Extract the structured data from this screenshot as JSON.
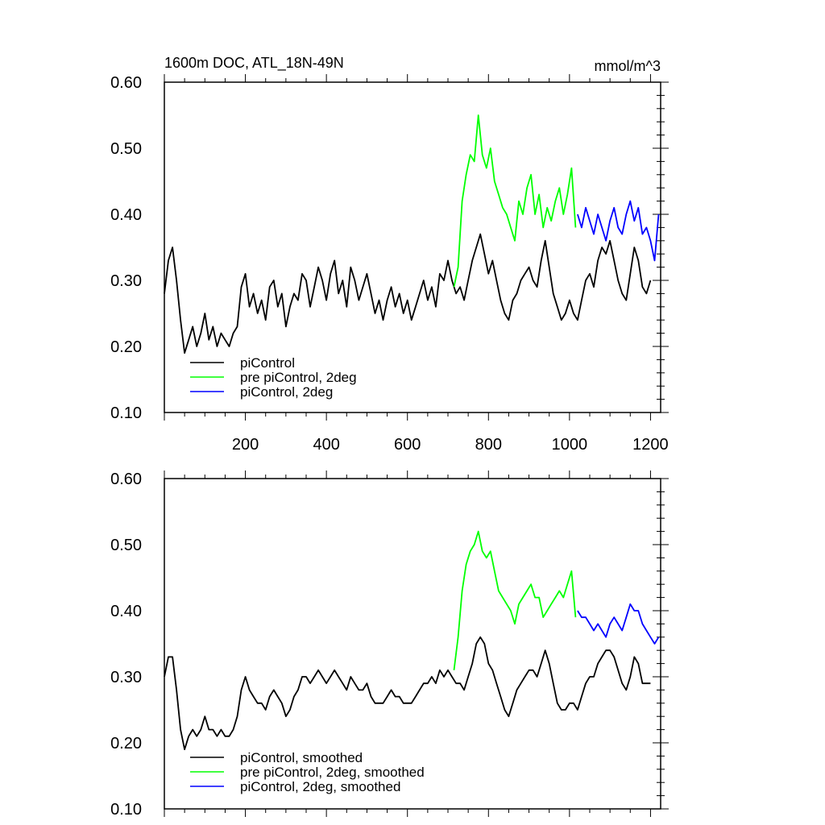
{
  "chart_data": [
    {
      "type": "line",
      "title": "1600m DOC, ATL_18N-49N",
      "units": "mmol/m^3",
      "xlabel": "",
      "ylabel": "",
      "xlim": [
        0,
        1225
      ],
      "ylim": [
        0.1,
        0.6
      ],
      "xticks": [
        200,
        400,
        600,
        800,
        1000,
        1200
      ],
      "yticks": [
        "0.10",
        "0.20",
        "0.30",
        "0.40",
        "0.50",
        "0.60"
      ],
      "grid": false,
      "legend_position": "bottom-left",
      "series": [
        {
          "name": "piControl",
          "color": "#000000",
          "x": [
            0,
            10,
            20,
            30,
            40,
            50,
            60,
            70,
            80,
            90,
            100,
            110,
            120,
            130,
            140,
            150,
            160,
            170,
            180,
            190,
            200,
            210,
            220,
            230,
            240,
            250,
            260,
            270,
            280,
            290,
            300,
            310,
            320,
            330,
            340,
            350,
            360,
            370,
            380,
            390,
            400,
            410,
            420,
            430,
            440,
            450,
            460,
            470,
            480,
            490,
            500,
            510,
            520,
            530,
            540,
            550,
            560,
            570,
            580,
            590,
            600,
            610,
            620,
            630,
            640,
            650,
            660,
            670,
            680,
            690,
            700,
            710,
            720,
            730,
            740,
            750,
            760,
            770,
            780,
            790,
            800,
            810,
            820,
            830,
            840,
            850,
            860,
            870,
            880,
            890,
            900,
            910,
            920,
            930,
            940,
            950,
            960,
            970,
            980,
            990,
            1000,
            1010,
            1020,
            1030,
            1040,
            1050,
            1060,
            1070,
            1080,
            1090,
            1100,
            1110,
            1120,
            1130,
            1140,
            1150,
            1160,
            1170,
            1180,
            1190,
            1200
          ],
          "values": [
            0.28,
            0.33,
            0.35,
            0.3,
            0.24,
            0.19,
            0.21,
            0.23,
            0.2,
            0.22,
            0.25,
            0.21,
            0.23,
            0.2,
            0.22,
            0.21,
            0.2,
            0.22,
            0.23,
            0.29,
            0.31,
            0.26,
            0.28,
            0.25,
            0.27,
            0.24,
            0.29,
            0.3,
            0.26,
            0.28,
            0.23,
            0.26,
            0.28,
            0.27,
            0.31,
            0.3,
            0.26,
            0.29,
            0.32,
            0.3,
            0.27,
            0.31,
            0.33,
            0.28,
            0.3,
            0.26,
            0.32,
            0.3,
            0.27,
            0.29,
            0.31,
            0.28,
            0.25,
            0.27,
            0.24,
            0.27,
            0.29,
            0.26,
            0.28,
            0.25,
            0.27,
            0.24,
            0.26,
            0.28,
            0.3,
            0.27,
            0.29,
            0.26,
            0.31,
            0.3,
            0.33,
            0.3,
            0.28,
            0.29,
            0.27,
            0.3,
            0.33,
            0.35,
            0.37,
            0.34,
            0.31,
            0.33,
            0.3,
            0.27,
            0.25,
            0.24,
            0.27,
            0.28,
            0.3,
            0.31,
            0.32,
            0.3,
            0.29,
            0.33,
            0.36,
            0.32,
            0.28,
            0.26,
            0.24,
            0.25,
            0.27,
            0.25,
            0.24,
            0.27,
            0.3,
            0.31,
            0.29,
            0.33,
            0.35,
            0.34,
            0.36,
            0.33,
            0.3,
            0.28,
            0.27,
            0.31,
            0.35,
            0.33,
            0.29,
            0.28,
            0.3
          ]
        },
        {
          "name": "pre piControl, 2deg",
          "color": "#00ff00",
          "x": [
            715,
            725,
            735,
            745,
            755,
            765,
            775,
            785,
            795,
            805,
            815,
            825,
            835,
            845,
            855,
            865,
            875,
            885,
            895,
            905,
            915,
            925,
            935,
            945,
            955,
            965,
            975,
            985,
            995,
            1005,
            1015
          ],
          "values": [
            0.29,
            0.32,
            0.42,
            0.46,
            0.49,
            0.48,
            0.55,
            0.49,
            0.47,
            0.5,
            0.45,
            0.43,
            0.41,
            0.4,
            0.38,
            0.36,
            0.42,
            0.4,
            0.44,
            0.46,
            0.4,
            0.43,
            0.38,
            0.41,
            0.39,
            0.42,
            0.44,
            0.4,
            0.43,
            0.47,
            0.38
          ]
        },
        {
          "name": "piControl, 2deg",
          "color": "#0000ff",
          "x": [
            1020,
            1030,
            1040,
            1050,
            1060,
            1070,
            1080,
            1090,
            1100,
            1110,
            1120,
            1130,
            1140,
            1150,
            1160,
            1170,
            1180,
            1190,
            1200,
            1210,
            1220
          ],
          "values": [
            0.4,
            0.38,
            0.41,
            0.39,
            0.37,
            0.4,
            0.38,
            0.36,
            0.39,
            0.41,
            0.38,
            0.37,
            0.4,
            0.42,
            0.39,
            0.41,
            0.37,
            0.38,
            0.36,
            0.33,
            0.4
          ]
        }
      ]
    },
    {
      "type": "line",
      "title": "",
      "units": "",
      "xlabel": "",
      "ylabel": "",
      "xlim": [
        0,
        1225
      ],
      "ylim": [
        0.1,
        0.6
      ],
      "xticks": [
        200,
        400,
        600,
        800,
        1000,
        1200
      ],
      "yticks": [
        "0.10",
        "0.20",
        "0.30",
        "0.40",
        "0.50",
        "0.60"
      ],
      "grid": false,
      "legend_position": "bottom-left",
      "series": [
        {
          "name": "piControl, smoothed",
          "color": "#000000",
          "x": [
            0,
            10,
            20,
            30,
            40,
            50,
            60,
            70,
            80,
            90,
            100,
            110,
            120,
            130,
            140,
            150,
            160,
            170,
            180,
            190,
            200,
            210,
            220,
            230,
            240,
            250,
            260,
            270,
            280,
            290,
            300,
            310,
            320,
            330,
            340,
            350,
            360,
            370,
            380,
            390,
            400,
            410,
            420,
            430,
            440,
            450,
            460,
            470,
            480,
            490,
            500,
            510,
            520,
            530,
            540,
            550,
            560,
            570,
            580,
            590,
            600,
            610,
            620,
            630,
            640,
            650,
            660,
            670,
            680,
            690,
            700,
            710,
            720,
            730,
            740,
            750,
            760,
            770,
            780,
            790,
            800,
            810,
            820,
            830,
            840,
            850,
            860,
            870,
            880,
            890,
            900,
            910,
            920,
            930,
            940,
            950,
            960,
            970,
            980,
            990,
            1000,
            1010,
            1020,
            1030,
            1040,
            1050,
            1060,
            1070,
            1080,
            1090,
            1100,
            1110,
            1120,
            1130,
            1140,
            1150,
            1160,
            1170,
            1180,
            1190,
            1200
          ],
          "values": [
            0.3,
            0.33,
            0.33,
            0.28,
            0.22,
            0.19,
            0.21,
            0.22,
            0.21,
            0.22,
            0.24,
            0.22,
            0.22,
            0.21,
            0.22,
            0.21,
            0.21,
            0.22,
            0.24,
            0.28,
            0.3,
            0.28,
            0.27,
            0.26,
            0.26,
            0.25,
            0.27,
            0.28,
            0.27,
            0.26,
            0.24,
            0.25,
            0.27,
            0.28,
            0.3,
            0.3,
            0.29,
            0.3,
            0.31,
            0.3,
            0.29,
            0.3,
            0.31,
            0.3,
            0.29,
            0.28,
            0.3,
            0.29,
            0.28,
            0.28,
            0.29,
            0.27,
            0.26,
            0.26,
            0.26,
            0.27,
            0.28,
            0.27,
            0.27,
            0.26,
            0.26,
            0.26,
            0.27,
            0.28,
            0.29,
            0.29,
            0.3,
            0.29,
            0.31,
            0.3,
            0.31,
            0.3,
            0.29,
            0.29,
            0.28,
            0.3,
            0.32,
            0.35,
            0.36,
            0.35,
            0.32,
            0.31,
            0.29,
            0.27,
            0.25,
            0.24,
            0.26,
            0.28,
            0.29,
            0.3,
            0.31,
            0.31,
            0.3,
            0.32,
            0.34,
            0.32,
            0.29,
            0.26,
            0.25,
            0.25,
            0.26,
            0.26,
            0.25,
            0.27,
            0.29,
            0.3,
            0.3,
            0.32,
            0.33,
            0.34,
            0.34,
            0.33,
            0.31,
            0.29,
            0.28,
            0.3,
            0.33,
            0.32,
            0.29,
            0.29,
            0.29
          ]
        },
        {
          "name": "pre piControl, 2deg, smoothed",
          "color": "#00ff00",
          "x": [
            715,
            725,
            735,
            745,
            755,
            765,
            775,
            785,
            795,
            805,
            815,
            825,
            835,
            845,
            855,
            865,
            875,
            885,
            895,
            905,
            915,
            925,
            935,
            945,
            955,
            965,
            975,
            985,
            995,
            1005,
            1015
          ],
          "values": [
            0.31,
            0.36,
            0.43,
            0.47,
            0.49,
            0.5,
            0.52,
            0.49,
            0.48,
            0.49,
            0.46,
            0.43,
            0.42,
            0.41,
            0.4,
            0.38,
            0.41,
            0.42,
            0.43,
            0.44,
            0.42,
            0.42,
            0.39,
            0.4,
            0.41,
            0.42,
            0.43,
            0.42,
            0.44,
            0.46,
            0.39
          ]
        },
        {
          "name": "piControl, 2deg, smoothed",
          "color": "#0000ff",
          "x": [
            1020,
            1030,
            1040,
            1050,
            1060,
            1070,
            1080,
            1090,
            1100,
            1110,
            1120,
            1130,
            1140,
            1150,
            1160,
            1170,
            1180,
            1190,
            1200,
            1210,
            1220
          ],
          "values": [
            0.4,
            0.39,
            0.39,
            0.38,
            0.37,
            0.38,
            0.37,
            0.36,
            0.38,
            0.39,
            0.38,
            0.37,
            0.39,
            0.41,
            0.4,
            0.4,
            0.38,
            0.37,
            0.36,
            0.35,
            0.36
          ]
        }
      ]
    }
  ]
}
